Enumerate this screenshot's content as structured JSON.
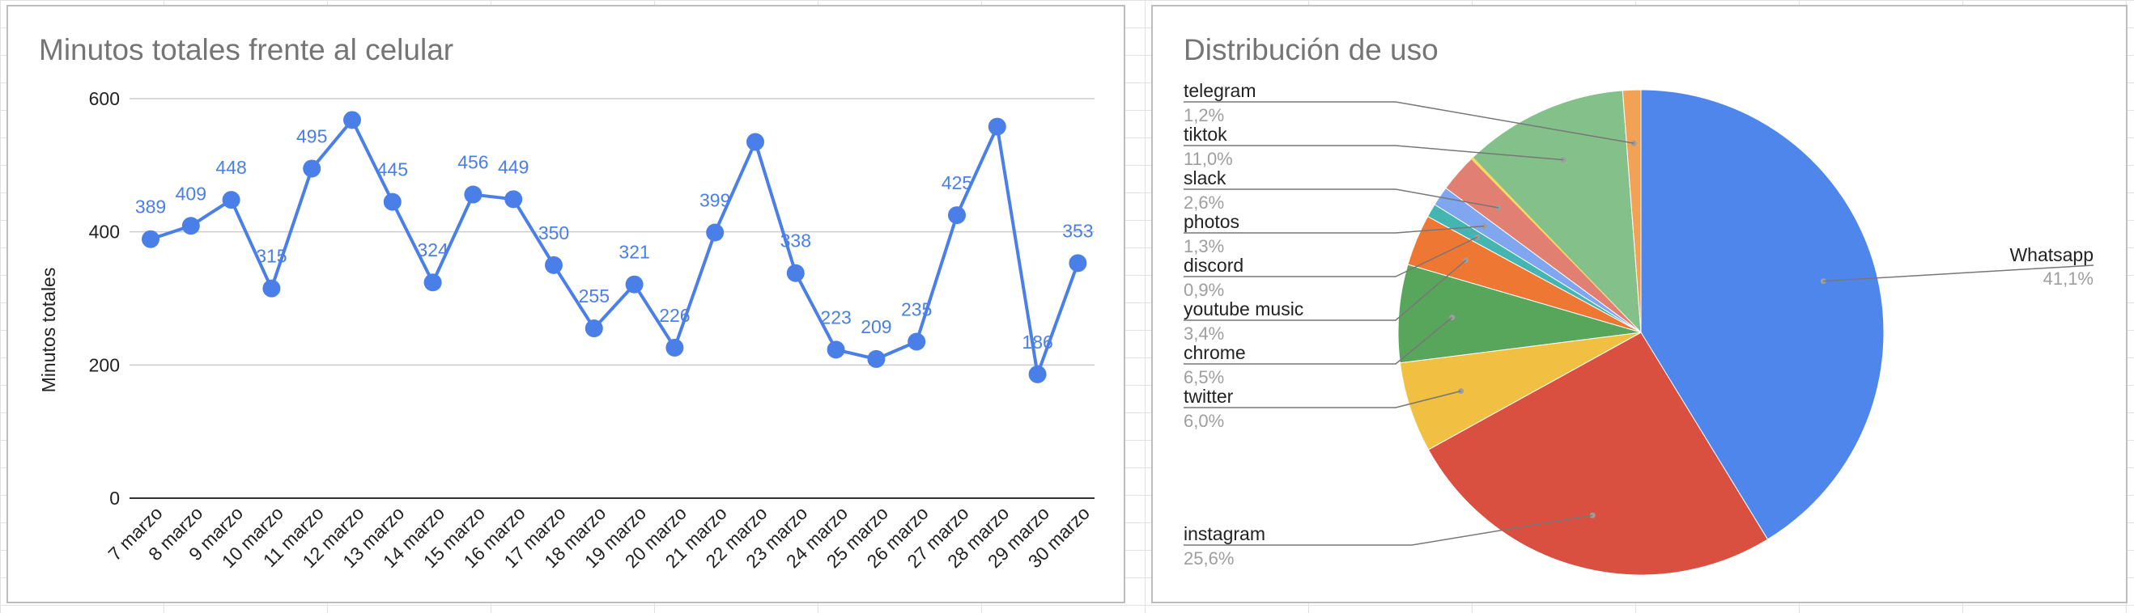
{
  "chart_data": [
    {
      "type": "line",
      "title": "Minutos totales frente al celular",
      "xlabel": "",
      "ylabel": "Minutos totales",
      "ylim": [
        0,
        600
      ],
      "yticks": [
        0,
        200,
        400,
        600
      ],
      "grid": true,
      "color": "#4a7fe8",
      "categories": [
        "7 marzo",
        "8 marzo",
        "9 marzo",
        "10 marzo",
        "11 marzo",
        "12 marzo",
        "13 marzo",
        "14 marzo",
        "15 marzo",
        "16 marzo",
        "17 marzo",
        "18 marzo",
        "19 marzo",
        "20 marzo",
        "21 marzo",
        "22 marzo",
        "23 marzo",
        "24 marzo",
        "25 marzo",
        "26 marzo",
        "27 marzo",
        "28 marzo",
        "29 marzo",
        "30 marzo"
      ],
      "values": [
        389,
        409,
        448,
        315,
        495,
        568,
        445,
        324,
        456,
        449,
        350,
        255,
        321,
        226,
        399,
        535,
        338,
        223,
        209,
        235,
        425,
        558,
        186,
        353
      ],
      "value_labels": [
        "389",
        "409",
        "448",
        "315",
        "495",
        "",
        "445",
        "324",
        "456",
        "449",
        "350",
        "255",
        "321",
        "226",
        "399",
        "",
        "338",
        "223",
        "209",
        "235",
        "425",
        "",
        "186",
        "353"
      ]
    },
    {
      "type": "pie",
      "title": "Distribución de uso",
      "legend": "labels",
      "slices": [
        {
          "label": "Whatsapp",
          "value": 41.1,
          "pct": "41,1%",
          "color": "#4f86ec"
        },
        {
          "label": "instagram",
          "value": 25.6,
          "pct": "25,6%",
          "color": "#d95040"
        },
        {
          "label": "twitter",
          "value": 6.0,
          "pct": "6,0%",
          "color": "#f1bf42"
        },
        {
          "label": "chrome",
          "value": 6.5,
          "pct": "6,5%",
          "color": "#58a55c"
        },
        {
          "label": "youtube music",
          "value": 3.4,
          "pct": "3,4%",
          "color": "#ef7734"
        },
        {
          "label": "discord",
          "value": 0.9,
          "pct": "0,9%",
          "color": "#45b5b1"
        },
        {
          "label": "photos",
          "value": 1.3,
          "pct": "1,3%",
          "color": "#7fa6ef"
        },
        {
          "label": "slack",
          "value": 2.6,
          "pct": "2,6%",
          "color": "#e17f72"
        },
        {
          "label": "tiktok",
          "value": 11.0,
          "pct": "11,0%",
          "color": "#84c08a"
        },
        {
          "label": "telegram",
          "value": 1.2,
          "pct": "1,2%",
          "color": "#f2a255"
        }
      ],
      "extra_thin_slice_color": "#f7d96a"
    }
  ]
}
